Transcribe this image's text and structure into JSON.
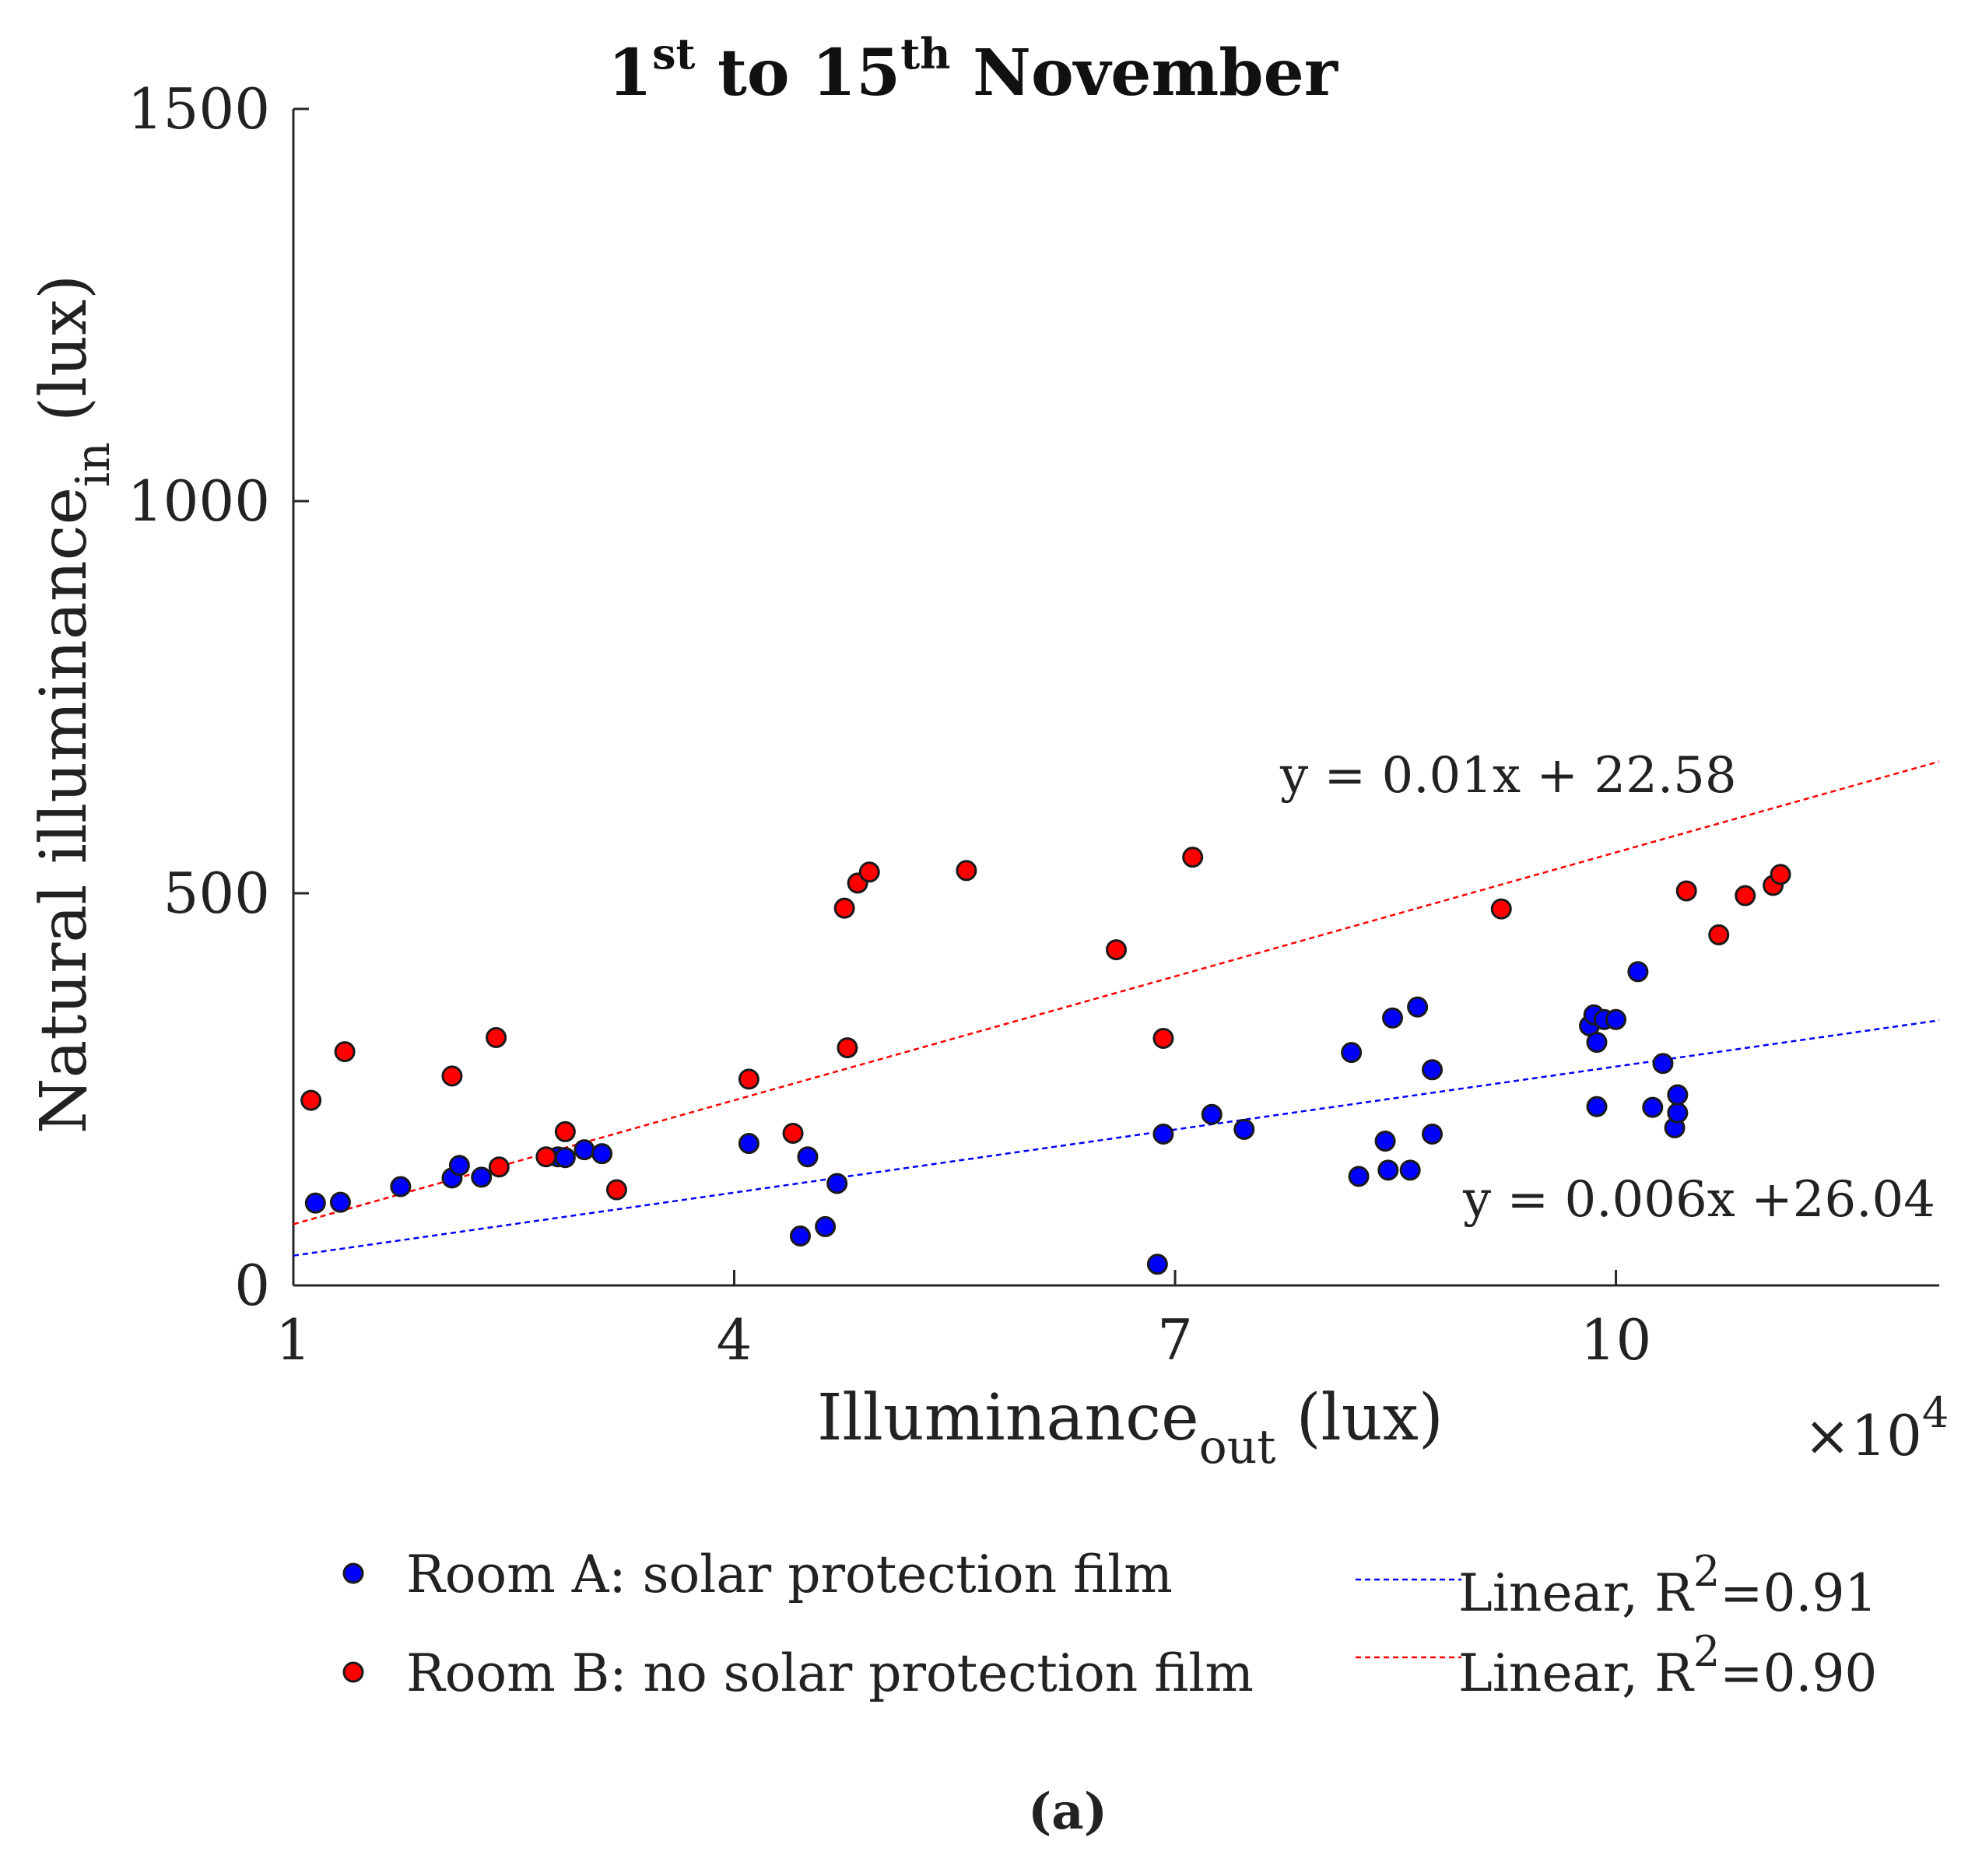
{
  "chart_data": {
    "type": "scatter",
    "title_prefix_num": "1",
    "title_prefix_sup": "st",
    "title_middle": " to 15",
    "title_middle_sup": "th",
    "title_suffix": " November",
    "xlabel_main": "Illuminance",
    "xlabel_sub": "out",
    "xlabel_unit": " (lux)",
    "ylabel_main": "Natural illuminance",
    "ylabel_sub": "in",
    "ylabel_unit": " (lux)",
    "x_multiplier_text": "×10",
    "x_multiplier_exp": "4",
    "xlim": [
      1,
      12.2
    ],
    "ylim": [
      0,
      1500
    ],
    "x_ticks": [
      1,
      4,
      7,
      10
    ],
    "x_tick_labels": [
      "1",
      "4",
      "7",
      "10"
    ],
    "y_ticks": [
      0,
      500,
      1000,
      1500
    ],
    "y_tick_labels": [
      "0",
      "500",
      "1000",
      "1500"
    ],
    "series": [
      {
        "name": "Room A: solar protection film",
        "color": "#0000ff",
        "points": [
          [
            1.15,
            105
          ],
          [
            1.32,
            106
          ],
          [
            1.73,
            126
          ],
          [
            2.08,
            137
          ],
          [
            2.13,
            153
          ],
          [
            2.28,
            138
          ],
          [
            2.8,
            164
          ],
          [
            2.85,
            163
          ],
          [
            2.98,
            173
          ],
          [
            3.1,
            168
          ],
          [
            4.1,
            181
          ],
          [
            4.45,
            63
          ],
          [
            4.5,
            164
          ],
          [
            4.62,
            75
          ],
          [
            4.7,
            130
          ],
          [
            6.88,
            27
          ],
          [
            6.92,
            193
          ],
          [
            7.25,
            218
          ],
          [
            7.47,
            199
          ],
          [
            8.2,
            297
          ],
          [
            8.25,
            139
          ],
          [
            8.43,
            184
          ],
          [
            8.45,
            147
          ],
          [
            8.48,
            341
          ],
          [
            8.6,
            147
          ],
          [
            8.65,
            355
          ],
          [
            8.75,
            275
          ],
          [
            8.75,
            193
          ],
          [
            9.82,
            331
          ],
          [
            9.85,
            345
          ],
          [
            9.87,
            228
          ],
          [
            9.87,
            310
          ],
          [
            9.92,
            339
          ],
          [
            10,
            339
          ],
          [
            10.15,
            400
          ],
          [
            10.25,
            227
          ],
          [
            10.32,
            283
          ],
          [
            10.4,
            201
          ],
          [
            10.42,
            220
          ],
          [
            10.42,
            243
          ]
        ]
      },
      {
        "name": "Room B: no solar protection film",
        "color": "#ff0000",
        "points": [
          [
            1.12,
            236
          ],
          [
            1.35,
            298
          ],
          [
            2.08,
            267
          ],
          [
            2.38,
            316
          ],
          [
            2.4,
            151
          ],
          [
            2.72,
            164
          ],
          [
            2.85,
            196
          ],
          [
            3.2,
            122
          ],
          [
            4.1,
            263
          ],
          [
            4.4,
            194
          ],
          [
            4.75,
            481
          ],
          [
            4.77,
            303
          ],
          [
            4.84,
            513
          ],
          [
            4.92,
            527
          ],
          [
            5.58,
            529
          ],
          [
            6.6,
            428
          ],
          [
            6.92,
            315
          ],
          [
            7.12,
            546
          ],
          [
            9.22,
            480
          ],
          [
            10.48,
            503
          ],
          [
            10.7,
            447
          ],
          [
            10.88,
            497
          ],
          [
            11.07,
            510
          ],
          [
            11.12,
            524
          ]
        ]
      }
    ],
    "fits": [
      {
        "name": "Linear, R²=0.91",
        "color": "#0000ff",
        "x": [
          1,
          12.2
        ],
        "y": [
          38,
          338
        ]
      },
      {
        "name": "Linear, R²=0.90",
        "color": "#ff0000",
        "x": [
          1,
          12.2
        ],
        "y": [
          78,
          668
        ]
      }
    ],
    "annotations": [
      {
        "text": "y = 0.01x + 22.58"
      },
      {
        "text": "y = 0.006x +26.04"
      }
    ],
    "legend": {
      "room_a": "Room A: solar protection film",
      "room_b": "Room B: no solar protection film",
      "fit_prefix": "Linear, R",
      "fit_exp": "2",
      "fit_a_value": "=0.91",
      "fit_b_value": "=0.90"
    },
    "panel_label": "(a)"
  }
}
